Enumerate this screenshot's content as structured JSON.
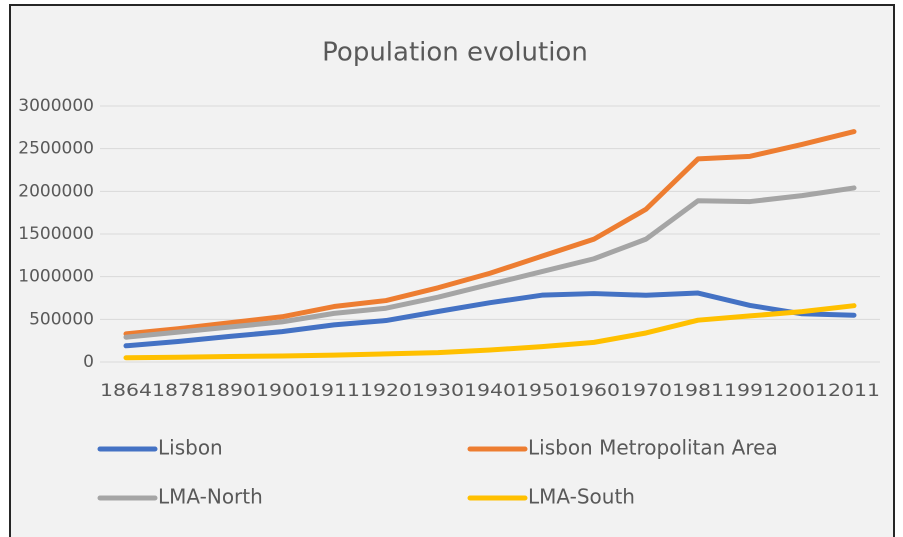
{
  "chart_data": {
    "type": "line",
    "title": "Population evolution",
    "categories": [
      "1864",
      "1878",
      "1890",
      "1900",
      "1911",
      "1920",
      "1930",
      "1940",
      "1950",
      "1960",
      "1970",
      "1981",
      "1991",
      "2001",
      "2011"
    ],
    "series": [
      {
        "name": "Lisbon",
        "color": "#4472c4",
        "values": [
          190000,
          240000,
          300000,
          356000,
          435000,
          486000,
          592000,
          695000,
          783000,
          802000,
          782000,
          808000,
          663000,
          565000,
          548000
        ]
      },
      {
        "name": "Lisbon Metropolitan Area",
        "color": "#ed7d31",
        "values": [
          330000,
          390000,
          460000,
          530000,
          650000,
          720000,
          870000,
          1040000,
          1240000,
          1440000,
          1790000,
          2380000,
          2410000,
          2550000,
          2700000
        ]
      },
      {
        "name": "LMA-North",
        "color": "#a5a5a5",
        "values": [
          290000,
          350000,
          410000,
          470000,
          570000,
          630000,
          760000,
          910000,
          1060000,
          1210000,
          1440000,
          1890000,
          1880000,
          1950000,
          2040000
        ]
      },
      {
        "name": "LMA-South",
        "color": "#ffc000",
        "values": [
          50000,
          55000,
          65000,
          70000,
          80000,
          95000,
          110000,
          140000,
          180000,
          230000,
          340000,
          490000,
          540000,
          590000,
          660000
        ]
      }
    ],
    "ylim": [
      0,
      3000000
    ],
    "yticks": [
      0,
      500000,
      1000000,
      1500000,
      2000000,
      2500000,
      3000000
    ],
    "grid": true,
    "legend": "bottom"
  }
}
